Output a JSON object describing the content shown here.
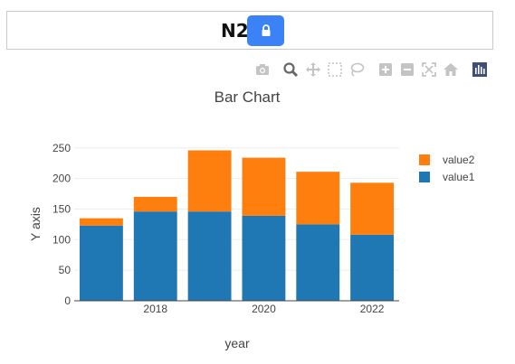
{
  "header": {
    "title": "N2",
    "lock_icon": "lock-icon",
    "button_color": "#3b82f6"
  },
  "modebar": {
    "icons": [
      "camera-icon",
      "zoom-icon",
      "pan-icon",
      "box-select-icon",
      "lasso-select-icon",
      "zoom-in-icon",
      "zoom-out-icon",
      "autoscale-icon",
      "reset-axes-icon",
      "plotly-logo-icon"
    ]
  },
  "chart_data": {
    "type": "bar",
    "barmode": "stack",
    "title": "Bar Chart",
    "xlabel": "year",
    "ylabel": "Y axis",
    "x": [
      2017,
      2018,
      2019,
      2020,
      2021,
      2022
    ],
    "x_ticks": [
      "2018",
      "2020",
      "2022"
    ],
    "y_ticks": [
      "0",
      "50",
      "100",
      "150",
      "200",
      "250"
    ],
    "ylim": [
      0,
      260
    ],
    "xlim": [
      2016.5,
      2022.5
    ],
    "series": [
      {
        "name": "value1",
        "color": "#1f77b4",
        "values": [
          123,
          146,
          146,
          139,
          125,
          108
        ]
      },
      {
        "name": "value2",
        "color": "#ff7f0e",
        "values": [
          12,
          24,
          100,
          95,
          86,
          85
        ]
      }
    ],
    "legend": [
      "value2",
      "value1"
    ],
    "legend_position": "top-right",
    "grid": true
  }
}
